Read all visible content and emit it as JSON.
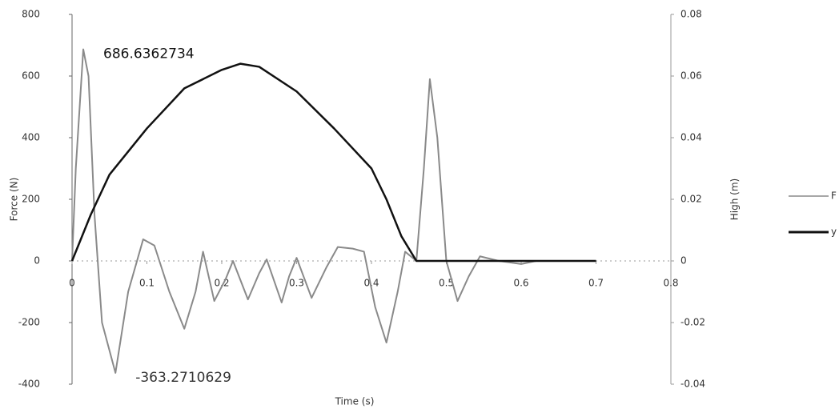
{
  "chart_data": {
    "type": "line",
    "x_label": "Time (s)",
    "y_label": "Force (N)",
    "y2_label": "High (m)",
    "annotations": [
      "686.6362734",
      "-363.2710629"
    ],
    "xlim": [
      0,
      0.8
    ],
    "xticks": [
      0,
      0.1,
      0.2,
      0.3,
      0.4,
      0.5,
      0.6,
      0.7,
      0.8
    ],
    "ylim": [
      -400,
      800
    ],
    "yticks": [
      -400,
      -200,
      0,
      200,
      400,
      600,
      800
    ],
    "y2lim": [
      -0.04,
      0.08
    ],
    "y2ticks": [
      -0.04,
      -0.02,
      0,
      0.02,
      0.04,
      0.06,
      0.08
    ],
    "legend": "right",
    "series": [
      {
        "name": "F",
        "color": "#8a8a8a",
        "x": [
          0,
          0.005,
          0.015,
          0.022,
          0.03,
          0.04,
          0.058,
          0.075,
          0.095,
          0.11,
          0.13,
          0.15,
          0.165,
          0.175,
          0.19,
          0.205,
          0.215,
          0.235,
          0.25,
          0.26,
          0.28,
          0.29,
          0.3,
          0.32,
          0.34,
          0.355,
          0.375,
          0.39,
          0.405,
          0.42,
          0.435,
          0.445,
          0.46,
          0.47,
          0.478,
          0.488,
          0.5,
          0.515,
          0.53,
          0.545,
          0.57,
          0.6,
          0.62
        ],
        "values": [
          0,
          300,
          686.6362734,
          600,
          150,
          -200,
          -363.2710629,
          -100,
          70,
          50,
          -100,
          -220,
          -100,
          30,
          -130,
          -60,
          0,
          -125,
          -40,
          5,
          -135,
          -50,
          10,
          -120,
          -20,
          45,
          40,
          30,
          -150,
          -265,
          -100,
          30,
          0,
          300,
          590,
          400,
          0,
          -130,
          -50,
          15,
          0,
          -10,
          0
        ]
      },
      {
        "name": "y",
        "color": "#111111",
        "axis": "y2",
        "x": [
          0,
          0.025,
          0.05,
          0.1,
          0.15,
          0.2,
          0.225,
          0.25,
          0.3,
          0.35,
          0.4,
          0.42,
          0.44,
          0.46,
          0.5,
          0.6,
          0.7
        ],
        "values": [
          0,
          0.015,
          0.028,
          0.043,
          0.056,
          0.062,
          0.064,
          0.063,
          0.055,
          0.043,
          0.03,
          0.02,
          0.008,
          0,
          0,
          0,
          0
        ]
      }
    ]
  }
}
